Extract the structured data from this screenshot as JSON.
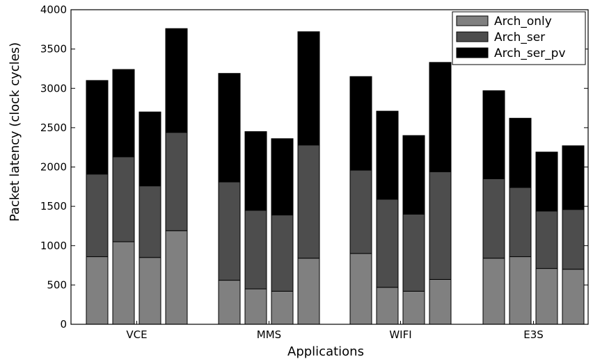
{
  "chart_data": {
    "type": "bar",
    "stacked": true,
    "xlabel": "Applications",
    "ylabel": "Packet latency (clock cycles)",
    "ylim": [
      0,
      4000
    ],
    "yticks": [
      0,
      500,
      1000,
      1500,
      2000,
      2500,
      3000,
      3500,
      4000
    ],
    "grid": false,
    "legend_position": "top-right",
    "groups": [
      {
        "name": "VCE",
        "bars": [
          {
            "Arch_only": 860,
            "Arch_ser": 1050,
            "Arch_ser_pv": 1190
          },
          {
            "Arch_only": 1050,
            "Arch_ser": 1080,
            "Arch_ser_pv": 1110
          },
          {
            "Arch_only": 850,
            "Arch_ser": 910,
            "Arch_ser_pv": 940
          },
          {
            "Arch_only": 1190,
            "Arch_ser": 1250,
            "Arch_ser_pv": 1320
          }
        ]
      },
      {
        "name": "MMS",
        "bars": [
          {
            "Arch_only": 560,
            "Arch_ser": 1250,
            "Arch_ser_pv": 1380
          },
          {
            "Arch_only": 450,
            "Arch_ser": 1000,
            "Arch_ser_pv": 1000
          },
          {
            "Arch_only": 420,
            "Arch_ser": 970,
            "Arch_ser_pv": 970
          },
          {
            "Arch_only": 840,
            "Arch_ser": 1440,
            "Arch_ser_pv": 1440
          }
        ]
      },
      {
        "name": "WIFI",
        "bars": [
          {
            "Arch_only": 900,
            "Arch_ser": 1060,
            "Arch_ser_pv": 1190
          },
          {
            "Arch_only": 470,
            "Arch_ser": 1120,
            "Arch_ser_pv": 1120
          },
          {
            "Arch_only": 420,
            "Arch_ser": 980,
            "Arch_ser_pv": 1000
          },
          {
            "Arch_only": 570,
            "Arch_ser": 1370,
            "Arch_ser_pv": 1390
          }
        ]
      },
      {
        "name": "E3S",
        "bars": [
          {
            "Arch_only": 840,
            "Arch_ser": 1010,
            "Arch_ser_pv": 1120
          },
          {
            "Arch_only": 860,
            "Arch_ser": 880,
            "Arch_ser_pv": 880
          },
          {
            "Arch_only": 710,
            "Arch_ser": 730,
            "Arch_ser_pv": 750
          },
          {
            "Arch_only": 700,
            "Arch_ser": 760,
            "Arch_ser_pv": 810
          }
        ]
      }
    ],
    "series": [
      {
        "name": "Arch_only",
        "color": "#808080"
      },
      {
        "name": "Arch_ser",
        "color": "#4d4d4d"
      },
      {
        "name": "Arch_ser_pv",
        "color": "#000000"
      }
    ]
  }
}
